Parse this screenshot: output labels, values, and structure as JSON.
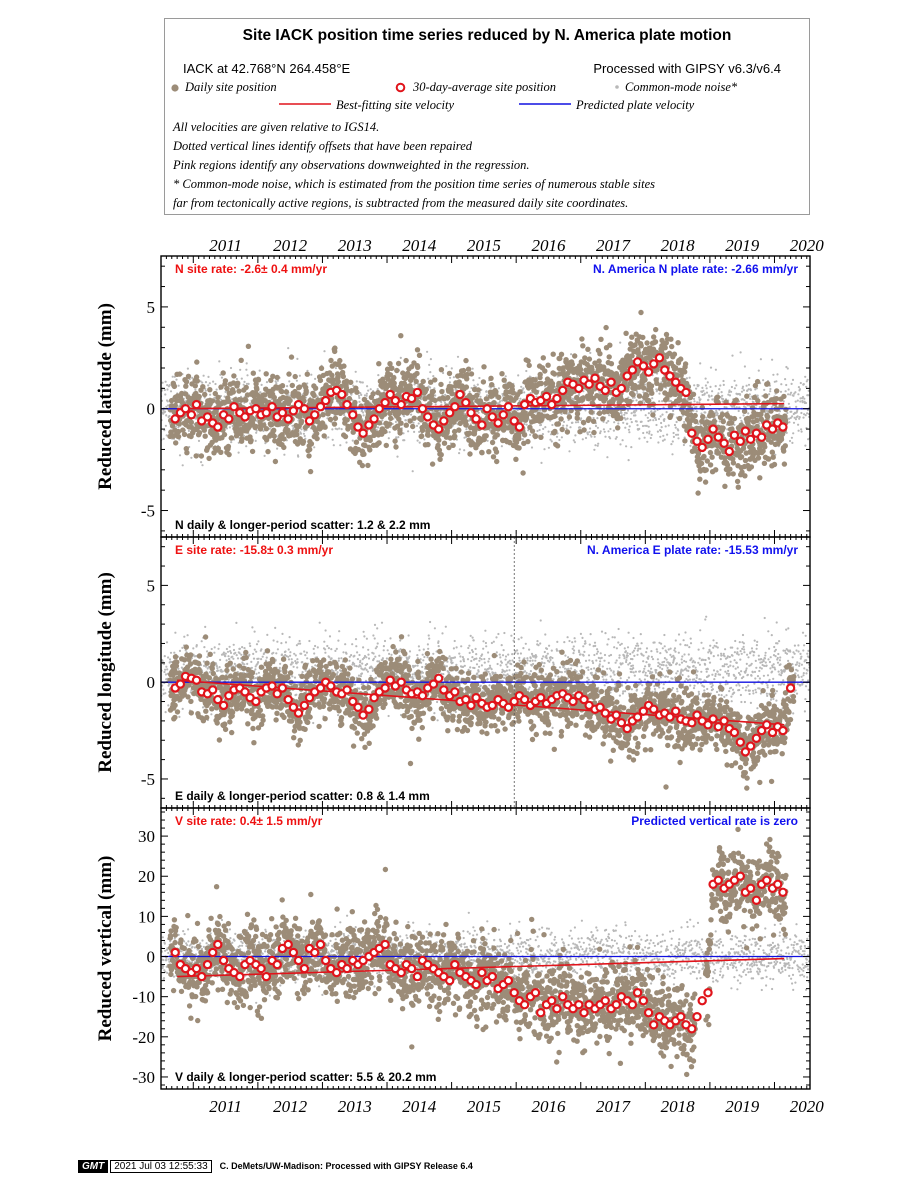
{
  "legend": {
    "title": "Site IACK position time series reduced by N. America plate motion",
    "site_coords": "IACK at 42.768°N 264.458°E",
    "processing": "Processed with GIPSY v6.3/v6.4",
    "daily_label": "Daily site position",
    "avg_label": "30-day-average site position",
    "cmn_label": "Common-mode noise*",
    "best_fit_label": "Best-fitting site velocity",
    "plate_label": "Predicted plate velocity",
    "note1": "All velocities are given relative to IGS14.",
    "note2": "Dotted vertical lines identify offsets that have been repaired",
    "note3": "Pink regions identify any observations downweighted in the regression.",
    "note4": "* Common-mode noise, which is estimated from the position time series of numerous stable sites",
    "note5": "far from tectonically active regions, is subtracted from the measured daily site coordinates."
  },
  "colors": {
    "daily": "#9c8c78",
    "avg_ring": "#e0141b",
    "cmn": "#b8b8b8",
    "fit_line": "#e0141b",
    "plate_line": "#1010e0",
    "rate_red": "#ee1111",
    "rate_blue": "#1111ee"
  },
  "chart_data": [
    {
      "type": "scatter",
      "component": "N",
      "ylabel": "Reduced latitude (mm)",
      "ylim": [
        -6.3,
        7.5
      ],
      "yticks": [
        -5,
        0,
        5
      ],
      "xlim": [
        2010.5,
        2020.55
      ],
      "site_rate_text": "N site rate:  -2.6± 0.4 mm/yr",
      "plate_rate_text": "N. America N plate rate: -2.66 mm/yr",
      "scatter_text": "N daily & longer-period scatter:   1.2 &   2.2 mm",
      "best_fit": {
        "x": [
          2010.75,
          2020.15
        ],
        "y": [
          0.0,
          0.25
        ]
      },
      "plate_line": {
        "x": [
          2010.5,
          2020.55
        ],
        "y": [
          0,
          0
        ]
      },
      "offsets": [],
      "avg_x": [
        2010.72,
        2010.8,
        2010.88,
        2010.97,
        2011.05,
        2011.13,
        2011.22,
        2011.3,
        2011.38,
        2011.47,
        2011.55,
        2011.63,
        2011.72,
        2011.8,
        2011.88,
        2011.97,
        2012.05,
        2012.13,
        2012.22,
        2012.3,
        2012.38,
        2012.47,
        2012.55,
        2012.63,
        2012.72,
        2012.8,
        2012.88,
        2012.97,
        2013.05,
        2013.13,
        2013.22,
        2013.3,
        2013.38,
        2013.47,
        2013.55,
        2013.63,
        2013.72,
        2013.8,
        2013.88,
        2013.97,
        2014.05,
        2014.13,
        2014.22,
        2014.3,
        2014.38,
        2014.47,
        2014.55,
        2014.63,
        2014.72,
        2014.8,
        2014.88,
        2014.97,
        2015.05,
        2015.13,
        2015.22,
        2015.3,
        2015.38,
        2015.47,
        2015.55,
        2015.63,
        2015.72,
        2015.8,
        2015.88,
        2015.97,
        2016.05,
        2016.13,
        2016.22,
        2016.3,
        2016.38,
        2016.47,
        2016.55,
        2016.63,
        2016.72,
        2016.8,
        2016.88,
        2016.97,
        2017.05,
        2017.13,
        2017.22,
        2017.3,
        2017.38,
        2017.47,
        2017.55,
        2017.63,
        2017.72,
        2017.8,
        2017.88,
        2017.97,
        2018.05,
        2018.13,
        2018.22,
        2018.3,
        2018.38,
        2018.47,
        2018.55,
        2018.63,
        2018.72,
        2018.8,
        2018.88,
        2018.97,
        2019.05,
        2019.13,
        2019.22,
        2019.3,
        2019.38,
        2019.47,
        2019.55,
        2019.63,
        2019.72,
        2019.8,
        2019.88,
        2019.97,
        2020.05,
        2020.13
      ],
      "avg_y": [
        -0.5,
        -0.2,
        0.0,
        -0.3,
        0.2,
        -0.6,
        -0.4,
        -0.7,
        -0.9,
        -0.3,
        -0.5,
        0.1,
        -0.2,
        -0.4,
        -0.1,
        0.0,
        -0.3,
        -0.2,
        0.1,
        -0.4,
        -0.2,
        -0.5,
        -0.1,
        0.2,
        0.0,
        -0.6,
        -0.3,
        0.1,
        0.4,
        0.8,
        0.9,
        0.7,
        0.2,
        -0.3,
        -0.9,
        -1.2,
        -0.8,
        -0.5,
        0.0,
        0.3,
        0.7,
        0.4,
        0.2,
        0.6,
        0.5,
        0.8,
        0.0,
        -0.4,
        -0.8,
        -1.0,
        -0.6,
        -0.2,
        0.1,
        0.7,
        0.3,
        -0.2,
        -0.5,
        -0.8,
        0.0,
        -0.4,
        -0.7,
        -0.3,
        0.1,
        -0.6,
        -0.9,
        0.2,
        0.5,
        0.3,
        0.4,
        0.6,
        0.2,
        0.5,
        0.9,
        1.3,
        1.2,
        1.0,
        1.4,
        1.2,
        1.5,
        1.1,
        0.9,
        1.3,
        0.8,
        1.0,
        1.6,
        1.9,
        2.3,
        2.1,
        1.8,
        2.2,
        2.5,
        1.9,
        1.6,
        1.3,
        1.0,
        0.8,
        -1.2,
        -1.6,
        -1.9,
        -1.5,
        -1.0,
        -1.4,
        -1.7,
        -2.1,
        -1.3,
        -1.6,
        -1.1,
        -1.5,
        -1.2,
        -1.4,
        -0.8,
        -1.0,
        -0.7,
        -0.9
      ],
      "daily_model": {
        "seed": 11,
        "noise": 0.9,
        "outliers": 0.02
      },
      "cmn_model": {
        "seed": 21,
        "noise": 0.9,
        "offset": 0
      }
    },
    {
      "type": "scatter",
      "component": "E",
      "ylabel": "Reduced longitude (mm)",
      "ylim": [
        -6.5,
        7.5
      ],
      "yticks": [
        -5,
        0,
        5
      ],
      "xlim": [
        2010.5,
        2020.55
      ],
      "site_rate_text": "E site rate:  -15.8± 0.3 mm/yr",
      "plate_rate_text": "N. America E plate rate: -15.53 mm/yr",
      "scatter_text": "E daily & longer-period scatter:   0.8 &   1.4 mm",
      "best_fit": {
        "x": [
          2010.75,
          2020.15
        ],
        "y": [
          0.1,
          -2.2
        ]
      },
      "plate_line": {
        "x": [
          2010.5,
          2020.55
        ],
        "y": [
          0,
          0
        ]
      },
      "offsets": [
        2015.97
      ],
      "avg_x": [
        2010.72,
        2010.8,
        2010.88,
        2010.97,
        2011.05,
        2011.13,
        2011.22,
        2011.3,
        2011.38,
        2011.47,
        2011.55,
        2011.63,
        2011.72,
        2011.8,
        2011.88,
        2011.97,
        2012.05,
        2012.13,
        2012.22,
        2012.3,
        2012.38,
        2012.47,
        2012.55,
        2012.63,
        2012.72,
        2012.8,
        2012.88,
        2012.97,
        2013.05,
        2013.13,
        2013.22,
        2013.3,
        2013.38,
        2013.47,
        2013.55,
        2013.63,
        2013.72,
        2013.8,
        2013.88,
        2013.97,
        2014.05,
        2014.13,
        2014.22,
        2014.3,
        2014.38,
        2014.47,
        2014.55,
        2014.63,
        2014.72,
        2014.8,
        2014.88,
        2014.97,
        2015.05,
        2015.13,
        2015.22,
        2015.3,
        2015.38,
        2015.47,
        2015.55,
        2015.63,
        2015.72,
        2015.8,
        2015.88,
        2015.97,
        2016.05,
        2016.13,
        2016.22,
        2016.3,
        2016.38,
        2016.47,
        2016.55,
        2016.63,
        2016.72,
        2016.8,
        2016.88,
        2016.97,
        2017.05,
        2017.13,
        2017.22,
        2017.3,
        2017.38,
        2017.47,
        2017.55,
        2017.63,
        2017.72,
        2017.8,
        2017.88,
        2017.97,
        2018.05,
        2018.13,
        2018.22,
        2018.3,
        2018.38,
        2018.47,
        2018.55,
        2018.63,
        2018.72,
        2018.8,
        2018.88,
        2018.97,
        2019.05,
        2019.13,
        2019.22,
        2019.3,
        2019.38,
        2019.47,
        2019.55,
        2019.63,
        2019.72,
        2019.8,
        2019.88,
        2019.97,
        2020.05,
        2020.13,
        2020.25
      ],
      "avg_y": [
        -0.3,
        -0.1,
        0.3,
        0.2,
        0.1,
        -0.5,
        -0.6,
        -0.4,
        -0.9,
        -1.2,
        -0.7,
        -0.4,
        -0.3,
        -0.5,
        -0.8,
        -1.0,
        -0.5,
        -0.3,
        -0.2,
        -0.6,
        -0.3,
        -0.9,
        -1.3,
        -1.6,
        -1.2,
        -0.8,
        -0.5,
        -0.3,
        0.0,
        -0.2,
        -0.5,
        -0.6,
        -0.4,
        -1.0,
        -1.3,
        -1.7,
        -1.4,
        -0.8,
        -0.5,
        -0.3,
        0.1,
        -0.2,
        0.0,
        -0.4,
        -0.6,
        -0.5,
        -0.7,
        -0.3,
        -0.1,
        0.2,
        -0.4,
        -0.7,
        -0.5,
        -1.0,
        -0.9,
        -1.2,
        -0.8,
        -1.1,
        -1.3,
        -1.2,
        -0.9,
        -1.1,
        -1.3,
        -1.0,
        -0.7,
        -0.9,
        -1.2,
        -1.0,
        -0.8,
        -1.1,
        -0.9,
        -0.7,
        -0.6,
        -0.8,
        -1.0,
        -0.7,
        -0.9,
        -1.2,
        -1.4,
        -1.3,
        -1.6,
        -1.9,
        -1.7,
        -2.1,
        -2.4,
        -2.0,
        -1.8,
        -1.5,
        -1.2,
        -1.4,
        -1.7,
        -1.6,
        -1.8,
        -1.5,
        -1.9,
        -2.0,
        -2.1,
        -1.7,
        -2.0,
        -2.2,
        -1.9,
        -2.3,
        -2.0,
        -2.4,
        -2.6,
        -3.1,
        -3.6,
        -3.3,
        -2.9,
        -2.5,
        -2.2,
        -2.6,
        -2.3,
        -2.5,
        -0.3
      ],
      "daily_model": {
        "seed": 37,
        "noise": 0.75,
        "outliers": 0.01
      },
      "cmn_model": {
        "seed": 53,
        "noise": 0.9,
        "offset": 0.6
      }
    },
    {
      "type": "scatter",
      "component": "V",
      "ylabel": "Reduced vertical (mm)",
      "ylim": [
        -33,
        37
      ],
      "yticks": [
        -30,
        -20,
        -10,
        0,
        10,
        20,
        30
      ],
      "xlim": [
        2010.5,
        2020.55
      ],
      "site_rate_text": "V site rate:   0.4± 1.5 mm/yr",
      "plate_rate_text": "Predicted vertical rate is zero",
      "scatter_text": "V daily & longer-period scatter:   5.5 &  20.2 mm",
      "best_fit": {
        "x": [
          2010.75,
          2020.15
        ],
        "y": [
          -5.0,
          -0.5
        ]
      },
      "plate_line": {
        "x": [
          2010.5,
          2020.55
        ],
        "y": [
          0,
          0
        ]
      },
      "offsets": [],
      "avg_x": [
        2010.72,
        2010.8,
        2010.88,
        2010.97,
        2011.05,
        2011.13,
        2011.22,
        2011.3,
        2011.38,
        2011.47,
        2011.55,
        2011.63,
        2011.72,
        2011.8,
        2011.88,
        2011.97,
        2012.05,
        2012.13,
        2012.22,
        2012.3,
        2012.38,
        2012.47,
        2012.55,
        2012.63,
        2012.72,
        2012.8,
        2012.88,
        2012.97,
        2013.05,
        2013.13,
        2013.22,
        2013.3,
        2013.38,
        2013.47,
        2013.55,
        2013.63,
        2013.72,
        2013.8,
        2013.88,
        2013.97,
        2014.05,
        2014.13,
        2014.22,
        2014.3,
        2014.38,
        2014.47,
        2014.55,
        2014.63,
        2014.72,
        2014.8,
        2014.88,
        2014.97,
        2015.05,
        2015.13,
        2015.22,
        2015.3,
        2015.38,
        2015.47,
        2015.55,
        2015.63,
        2015.72,
        2015.8,
        2015.88,
        2015.97,
        2016.05,
        2016.13,
        2016.22,
        2016.3,
        2016.38,
        2016.47,
        2016.55,
        2016.63,
        2016.72,
        2016.8,
        2016.88,
        2016.97,
        2017.05,
        2017.13,
        2017.22,
        2017.3,
        2017.38,
        2017.47,
        2017.55,
        2017.63,
        2017.72,
        2017.8,
        2017.88,
        2017.97,
        2018.05,
        2018.13,
        2018.22,
        2018.3,
        2018.38,
        2018.47,
        2018.55,
        2018.63,
        2018.72,
        2018.8,
        2018.88,
        2018.97,
        2019.05,
        2019.13,
        2019.22,
        2019.3,
        2019.38,
        2019.47,
        2019.55,
        2019.63,
        2019.72,
        2019.8,
        2019.88,
        2019.97,
        2020.05,
        2020.13
      ],
      "avg_y": [
        1,
        -2,
        -3,
        -4,
        -3,
        -5,
        -2,
        1,
        3,
        -1,
        -3,
        -4,
        -5,
        -2,
        -1,
        -2,
        -3,
        -5,
        -1,
        -2,
        2,
        3,
        1,
        -1,
        -3,
        2,
        1,
        3,
        -1,
        -3,
        -4,
        -2,
        -3,
        -1,
        -2,
        -1,
        0,
        1,
        2,
        3,
        -2,
        -3,
        -4,
        -2,
        -3,
        -5,
        -1,
        -2,
        -3,
        -4,
        -5,
        -6,
        -2,
        -4,
        -5,
        -6,
        -7,
        -4,
        -6,
        -5,
        -8,
        -7,
        -6,
        -9,
        -11,
        -12,
        -10,
        -9,
        -14,
        -12,
        -11,
        -13,
        -10,
        -12,
        -13,
        -12,
        -14,
        -12,
        -13,
        -12,
        -11,
        -13,
        -12,
        -10,
        -11,
        -12,
        -9,
        -11,
        -14,
        -17,
        -15,
        -16,
        -17,
        -16,
        -15,
        -17,
        -18,
        -15,
        -11,
        -9,
        18,
        19,
        17,
        18,
        19,
        20,
        16,
        17,
        14,
        18,
        19,
        17,
        18,
        16,
        15,
        14
      ],
      "daily_model": {
        "seed": 71,
        "noise": 4.6,
        "outliers": 0.02
      },
      "cmn_model": {
        "seed": 89,
        "noise": 3.2,
        "offset": 0
      }
    }
  ],
  "x_axis": {
    "tick_years": [
      "2011",
      "2012",
      "2013",
      "2014",
      "2015",
      "2016",
      "2017",
      "2018",
      "2019",
      "2020"
    ]
  },
  "footer": {
    "logo": "GMT",
    "timestamp": "2021 Jul 03 12:55:33",
    "credit": "C. DeMets/UW-Madison: Processed with GIPSY Release 6.4"
  }
}
